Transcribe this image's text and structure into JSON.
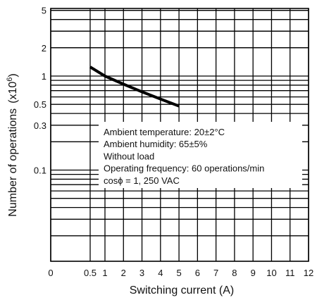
{
  "chart_data": {
    "type": "line",
    "xlabel": "Switching current (A)",
    "ylabel": "Number of operations",
    "ylabel_unit_base": "(x10",
    "ylabel_unit_exp": "6",
    "ylabel_unit_close": ")",
    "x_scale": "linear",
    "y_scale": "log",
    "xlim": [
      0,
      12
    ],
    "ylim": [
      0.01,
      5
    ],
    "grid": true,
    "x_ticks": [
      0,
      0.5,
      1,
      2,
      3,
      4,
      5,
      6,
      7,
      8,
      9,
      10,
      11,
      12
    ],
    "x_tick_labels": [
      "0",
      "0.5",
      "1",
      "2",
      "3",
      "4",
      "5",
      "6",
      "7",
      "8",
      "9",
      "10",
      "11",
      "12"
    ],
    "y_ticks": [
      5,
      2,
      1,
      0.5,
      0.3,
      0.1
    ],
    "y_tick_labels": [
      "5",
      "2",
      "1",
      "0.5",
      "0.3",
      "0.1"
    ],
    "series": [
      {
        "x": [
          0.5,
          1,
          2,
          3,
          4,
          5
        ],
        "y": [
          1.25,
          1.0,
          0.82,
          0.68,
          0.57,
          0.48
        ]
      }
    ],
    "annotation_lines": [
      "Ambient temperature: 20±2°C",
      "Ambient humidity: 65±5%",
      "Without load",
      "Operating frequency: 60 operations/min",
      "cosϕ = 1, 250 VAC"
    ]
  }
}
